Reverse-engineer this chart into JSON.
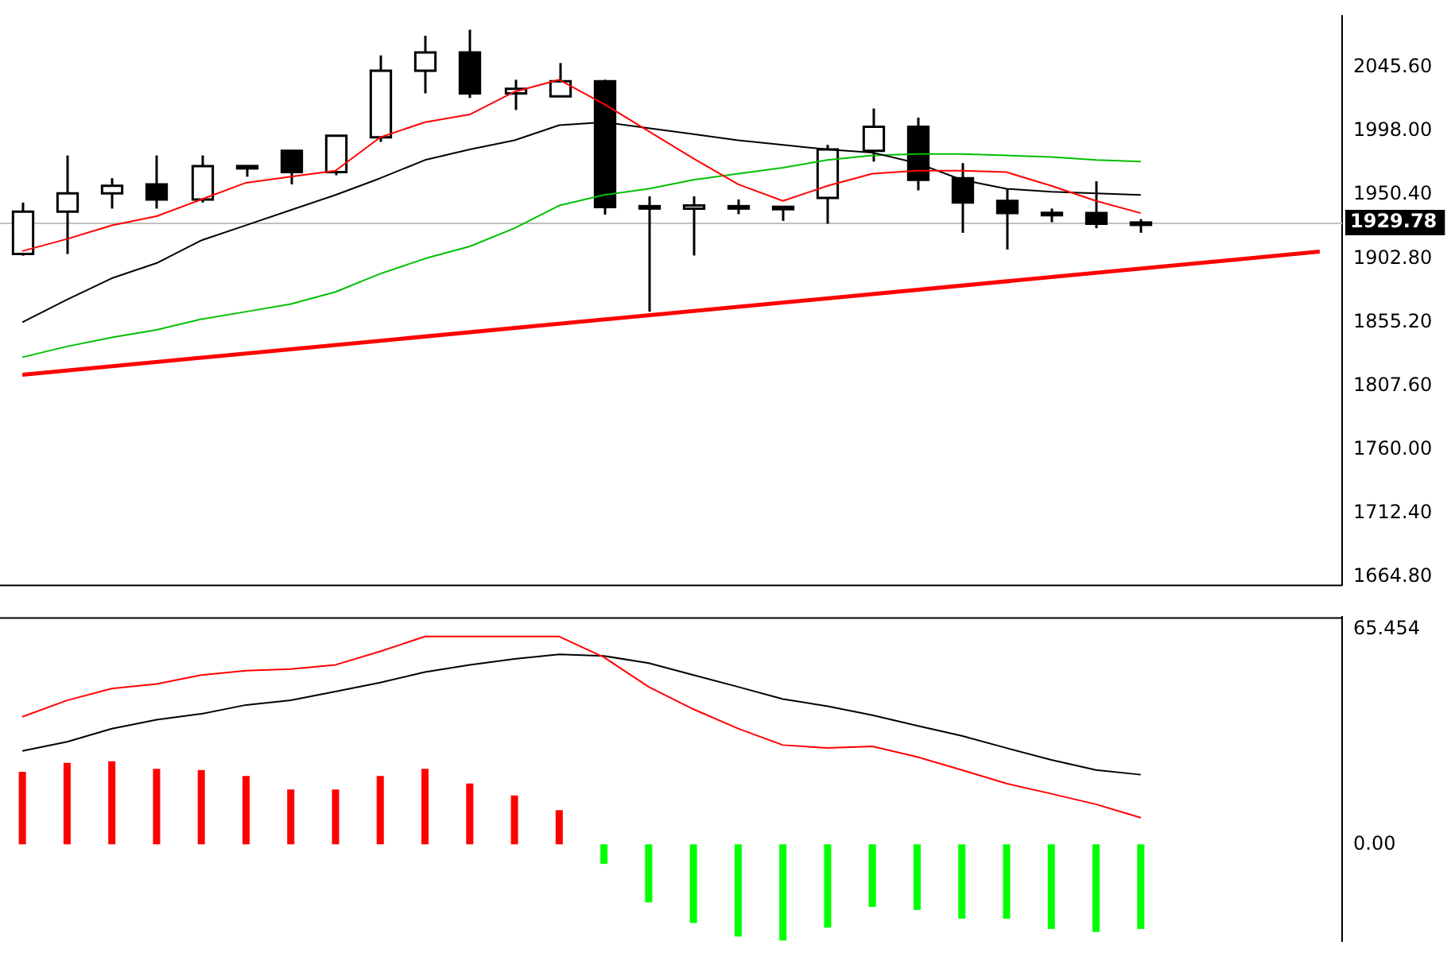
{
  "chart_data": [
    {
      "type": "candlestick",
      "categories": [
        null,
        null,
        null,
        null,
        null,
        null,
        null,
        null,
        null,
        null,
        null,
        null,
        null,
        null,
        null,
        null,
        null,
        null,
        null,
        null,
        null,
        null,
        null,
        null,
        null,
        null,
        null,
        null,
        null,
        null
      ],
      "ohlc": [
        [
          1906.2,
          1944.7,
          1905.0,
          1937.9
        ],
        [
          1937.9,
          1979.9,
          1906.2,
          1951.5
        ],
        [
          1951.5,
          1962.9,
          1940.2,
          1957.2
        ],
        [
          1958.3,
          1979.9,
          1940.2,
          1947.0
        ],
        [
          1947.0,
          1979.9,
          1944.7,
          1971.9
        ],
        [
          1971.0,
          1972.0,
          1964.0,
          1972.0
        ],
        [
          1983.3,
          1984.0,
          1958.3,
          1967.4
        ],
        [
          1967.4,
          1995.0,
          1965.1,
          1994.6
        ],
        [
          1993.5,
          2054.7,
          1990.1,
          2043.3
        ],
        [
          2043.3,
          2069.4,
          2026.3,
          2056.9
        ],
        [
          2056.9,
          2073.9,
          2022.9,
          2026.3
        ],
        [
          2026.3,
          2036.5,
          2013.9,
          2029.7
        ],
        [
          2024.1,
          2049.0,
          2024.1,
          2035.4
        ],
        [
          2035.4,
          2036.5,
          1935.7,
          1941.3
        ],
        [
          1942.0,
          1949.3,
          1863.1,
          1941.0
        ],
        [
          1940.2,
          1949.3,
          1905.1,
          1942.5
        ],
        [
          1942.0,
          1947.0,
          1936.0,
          1941.0
        ],
        [
          1941.5,
          1942.0,
          1931.0,
          1941.0
        ],
        [
          1948.1,
          1987.8,
          1928.9,
          1984.4
        ],
        [
          1983.3,
          2015.0,
          1975.3,
          2001.4
        ],
        [
          2001.4,
          2008.2,
          1953.8,
          1961.7
        ],
        [
          1962.9,
          1974.2,
          1922.1,
          1944.7
        ],
        [
          1945.9,
          1954.9,
          1909.6,
          1936.8
        ],
        [
          1937.0,
          1940.2,
          1930.0,
          1936.5
        ],
        [
          1936.8,
          1960.6,
          1925.5,
          1928.9
        ],
        [
          1929.0,
          1932.3,
          1922.1,
          1929.78
        ],
        null,
        null,
        null,
        null
      ],
      "series": [
        {
          "type": "line",
          "color": "#ff0000",
          "values": [
            1908.4,
            1917.5,
            1927.7,
            1934.5,
            1947.0,
            1959.5,
            1964.0,
            1968.5,
            1993.5,
            2004.8,
            2010.5,
            2027.5,
            2036.5,
            2018.4,
            1998.0,
            1977.6,
            1958.3,
            1945.9,
            1957.2,
            1966.3,
            1968.5,
            1968.5,
            1967.4,
            1957.2,
            1945.9,
            1936.8,
            null,
            null,
            null,
            null
          ]
        },
        {
          "type": "line",
          "color": "#000000",
          "values": [
            1855.2,
            1872.2,
            1888.1,
            1899.4,
            1916.4,
            1927.7,
            1939.1,
            1950.4,
            1962.9,
            1976.5,
            1984.4,
            1991.2,
            2002.5,
            2004.8,
            2000.3,
            1995.8,
            1991.2,
            1987.8,
            1984.4,
            1982.1,
            1974.2,
            1961.7,
            1955.0,
            1952.7,
            1951.5,
            1950.4,
            null,
            null,
            null,
            null
          ]
        },
        {
          "type": "line",
          "color": "#00c000",
          "values": [
            1829.1,
            1837.1,
            1843.9,
            1849.5,
            1857.5,
            1863.1,
            1868.8,
            1877.9,
            1891.5,
            1902.8,
            1911.9,
            1925.5,
            1942.5,
            1950.4,
            1955.0,
            1961.7,
            1966.3,
            1970.8,
            1976.5,
            1979.9,
            1981.0,
            1981.0,
            1979.9,
            1978.7,
            1976.5,
            1975.3,
            null,
            null,
            null,
            null
          ]
        },
        {
          "type": "line",
          "color": "#ff0000",
          "values": [
            1816.0,
            null,
            null,
            null,
            null,
            null,
            null,
            null,
            null,
            null,
            null,
            null,
            null,
            null,
            null,
            null,
            null,
            null,
            null,
            null,
            null,
            null,
            null,
            null,
            null,
            null,
            null,
            null,
            null,
            1908.0
          ]
        }
      ],
      "ylim": [
        1659,
        2084
      ],
      "yticks": [
        {
          "value": 1664.8,
          "label": "1664.80"
        },
        {
          "value": 1712.4,
          "label": "1712.40"
        },
        {
          "value": 1760,
          "label": "1760.00"
        },
        {
          "value": 1807.6,
          "label": "1807.60"
        },
        {
          "value": 1855.2,
          "label": "1855.20"
        },
        {
          "value": 1902.8,
          "label": "1902.80"
        },
        {
          "value": 1950.4,
          "label": "1950.40"
        },
        {
          "value": 1998,
          "label": "1998.00"
        },
        {
          "value": 2045.6,
          "label": "2045.60"
        }
      ],
      "ref_lines": [
        {
          "axis": "y",
          "value": 1929.78,
          "label": "1929.78",
          "color": "#c0c0c0"
        }
      ],
      "grid": false,
      "legend": false,
      "tick_labels": "y"
    },
    {
      "type": "bar",
      "categories": [
        null,
        null,
        null,
        null,
        null,
        null,
        null,
        null,
        null,
        null,
        null,
        null,
        null,
        null,
        null,
        null,
        null,
        null,
        null,
        null,
        null,
        null,
        null,
        null,
        null,
        null,
        null,
        null,
        null,
        null
      ],
      "series": [
        {
          "type": "bar",
          "values": [
            22.1,
            24.8,
            25.3,
            23.0,
            22.6,
            20.8,
            16.7,
            16.7,
            20.8,
            23.0,
            18.5,
            14.9,
            10.4,
            -5.9,
            -17.6,
            -23.9,
            -28.0,
            -29.3,
            -25.3,
            -19.0,
            -19.9,
            -22.6,
            -22.6,
            -25.7,
            -26.6,
            -25.7,
            null,
            null,
            null,
            null
          ],
          "colors": [
            "#ff0000",
            "#ff0000",
            "#ff0000",
            "#ff0000",
            "#ff0000",
            "#ff0000",
            "#ff0000",
            "#ff0000",
            "#ff0000",
            "#ff0000",
            "#ff0000",
            "#ff0000",
            "#ff0000",
            "#00ff00",
            "#00ff00",
            "#00ff00",
            "#00ff00",
            "#00ff00",
            "#00ff00",
            "#00ff00",
            "#00ff00",
            "#00ff00",
            "#00ff00",
            "#00ff00",
            "#00ff00",
            "#00ff00",
            "#00ff00",
            "#00ff00",
            "#00ff00",
            "#00ff00"
          ]
        },
        {
          "type": "line",
          "color": "#ff0000",
          "values": [
            38.8,
            43.8,
            47.4,
            48.8,
            51.5,
            52.8,
            53.3,
            54.6,
            58.7,
            63.2,
            63.2,
            63.2,
            63.2,
            56.9,
            47.9,
            41.1,
            35.2,
            30.2,
            29.3,
            29.8,
            26.6,
            22.6,
            18.5,
            15.4,
            12.2,
            8.1,
            null,
            null,
            null,
            null
          ]
        },
        {
          "type": "line",
          "color": "#000000",
          "values": [
            28.4,
            31.2,
            35.2,
            37.9,
            39.7,
            42.4,
            43.8,
            46.5,
            49.2,
            52.4,
            54.6,
            56.4,
            57.8,
            57.3,
            55.1,
            51.5,
            47.9,
            44.2,
            42.0,
            39.3,
            36.1,
            33.0,
            29.3,
            25.7,
            22.6,
            21.2,
            null,
            null,
            null,
            null
          ]
        }
      ],
      "ylim": [
        -29.3,
        69.1
      ],
      "yticks": [
        {
          "value": 0,
          "label": "0.00"
        },
        65.454
      ],
      "grid": false,
      "legend": false,
      "tick_labels": "y"
    }
  ]
}
